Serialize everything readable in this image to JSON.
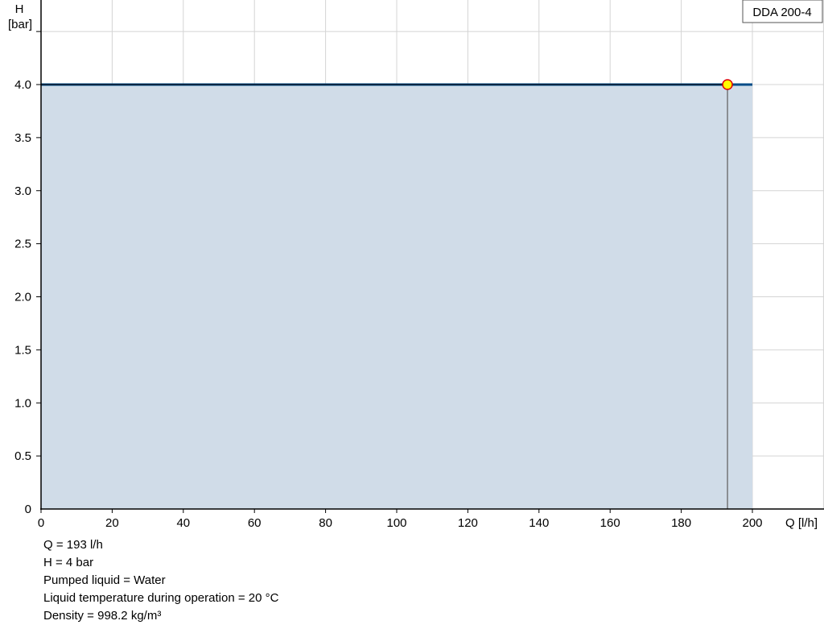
{
  "chart_data": {
    "type": "area",
    "title": "",
    "legend": "DDA 200-4",
    "legend_placement": "top-right",
    "xlabel": "Q [l/h]",
    "ylabel_line1": "H",
    "ylabel_line2": "[bar]",
    "xlim": [
      0,
      220
    ],
    "ylim": [
      0,
      4.8
    ],
    "grid": true,
    "x_ticks": [
      0,
      20,
      40,
      60,
      80,
      100,
      120,
      140,
      160,
      180,
      200
    ],
    "y_ticks": [
      0,
      0.5,
      1.0,
      1.5,
      2.0,
      2.5,
      3.0,
      3.5,
      4.0
    ],
    "y_tick_labels": [
      "0",
      "0.5",
      "1.0",
      "1.5",
      "2.0",
      "2.5",
      "3.0",
      "3.5",
      "4.0"
    ],
    "series": [
      {
        "x": [
          0,
          200
        ],
        "y": [
          4.0,
          4.0
        ],
        "color": "#004b87",
        "fill": "#d0dce8"
      }
    ],
    "operating_point": {
      "x": 193,
      "y": 4.0,
      "color": "#ffff00",
      "stroke": "#e00000"
    }
  },
  "info": [
    "Q = 193 l/h",
    "H = 4 bar",
    "Pumped liquid = Water",
    "Liquid temperature during operation = 20 °C",
    "Density = 998.2 kg/m³"
  ]
}
